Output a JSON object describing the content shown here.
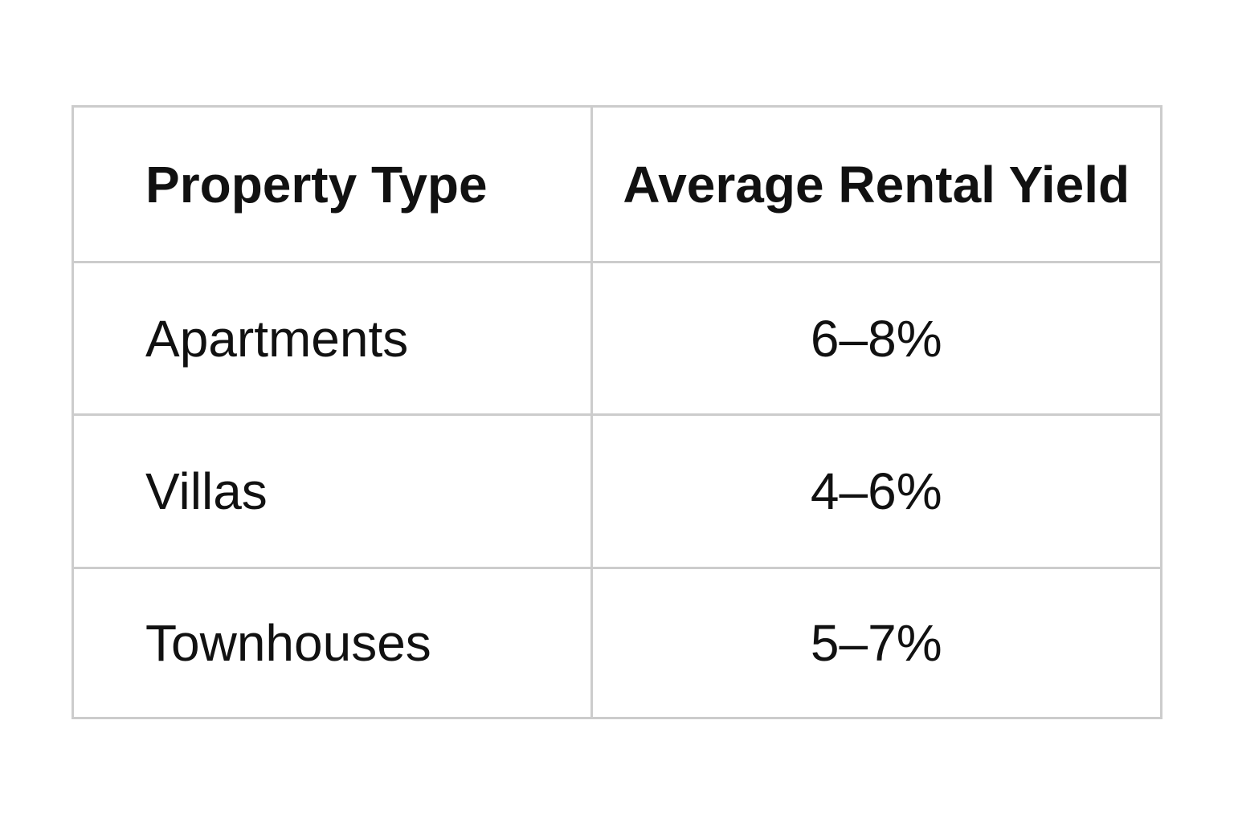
{
  "chart_data": {
    "type": "table",
    "columns": [
      "Property Type",
      "Average Rental Yield"
    ],
    "rows": [
      [
        "Apartments",
        "6–8%"
      ],
      [
        "Villas",
        "4–6%"
      ],
      [
        "Townhouses",
        "5–7%"
      ]
    ],
    "grid": true,
    "border_color": "#cccccc",
    "text_color": "#111111"
  }
}
